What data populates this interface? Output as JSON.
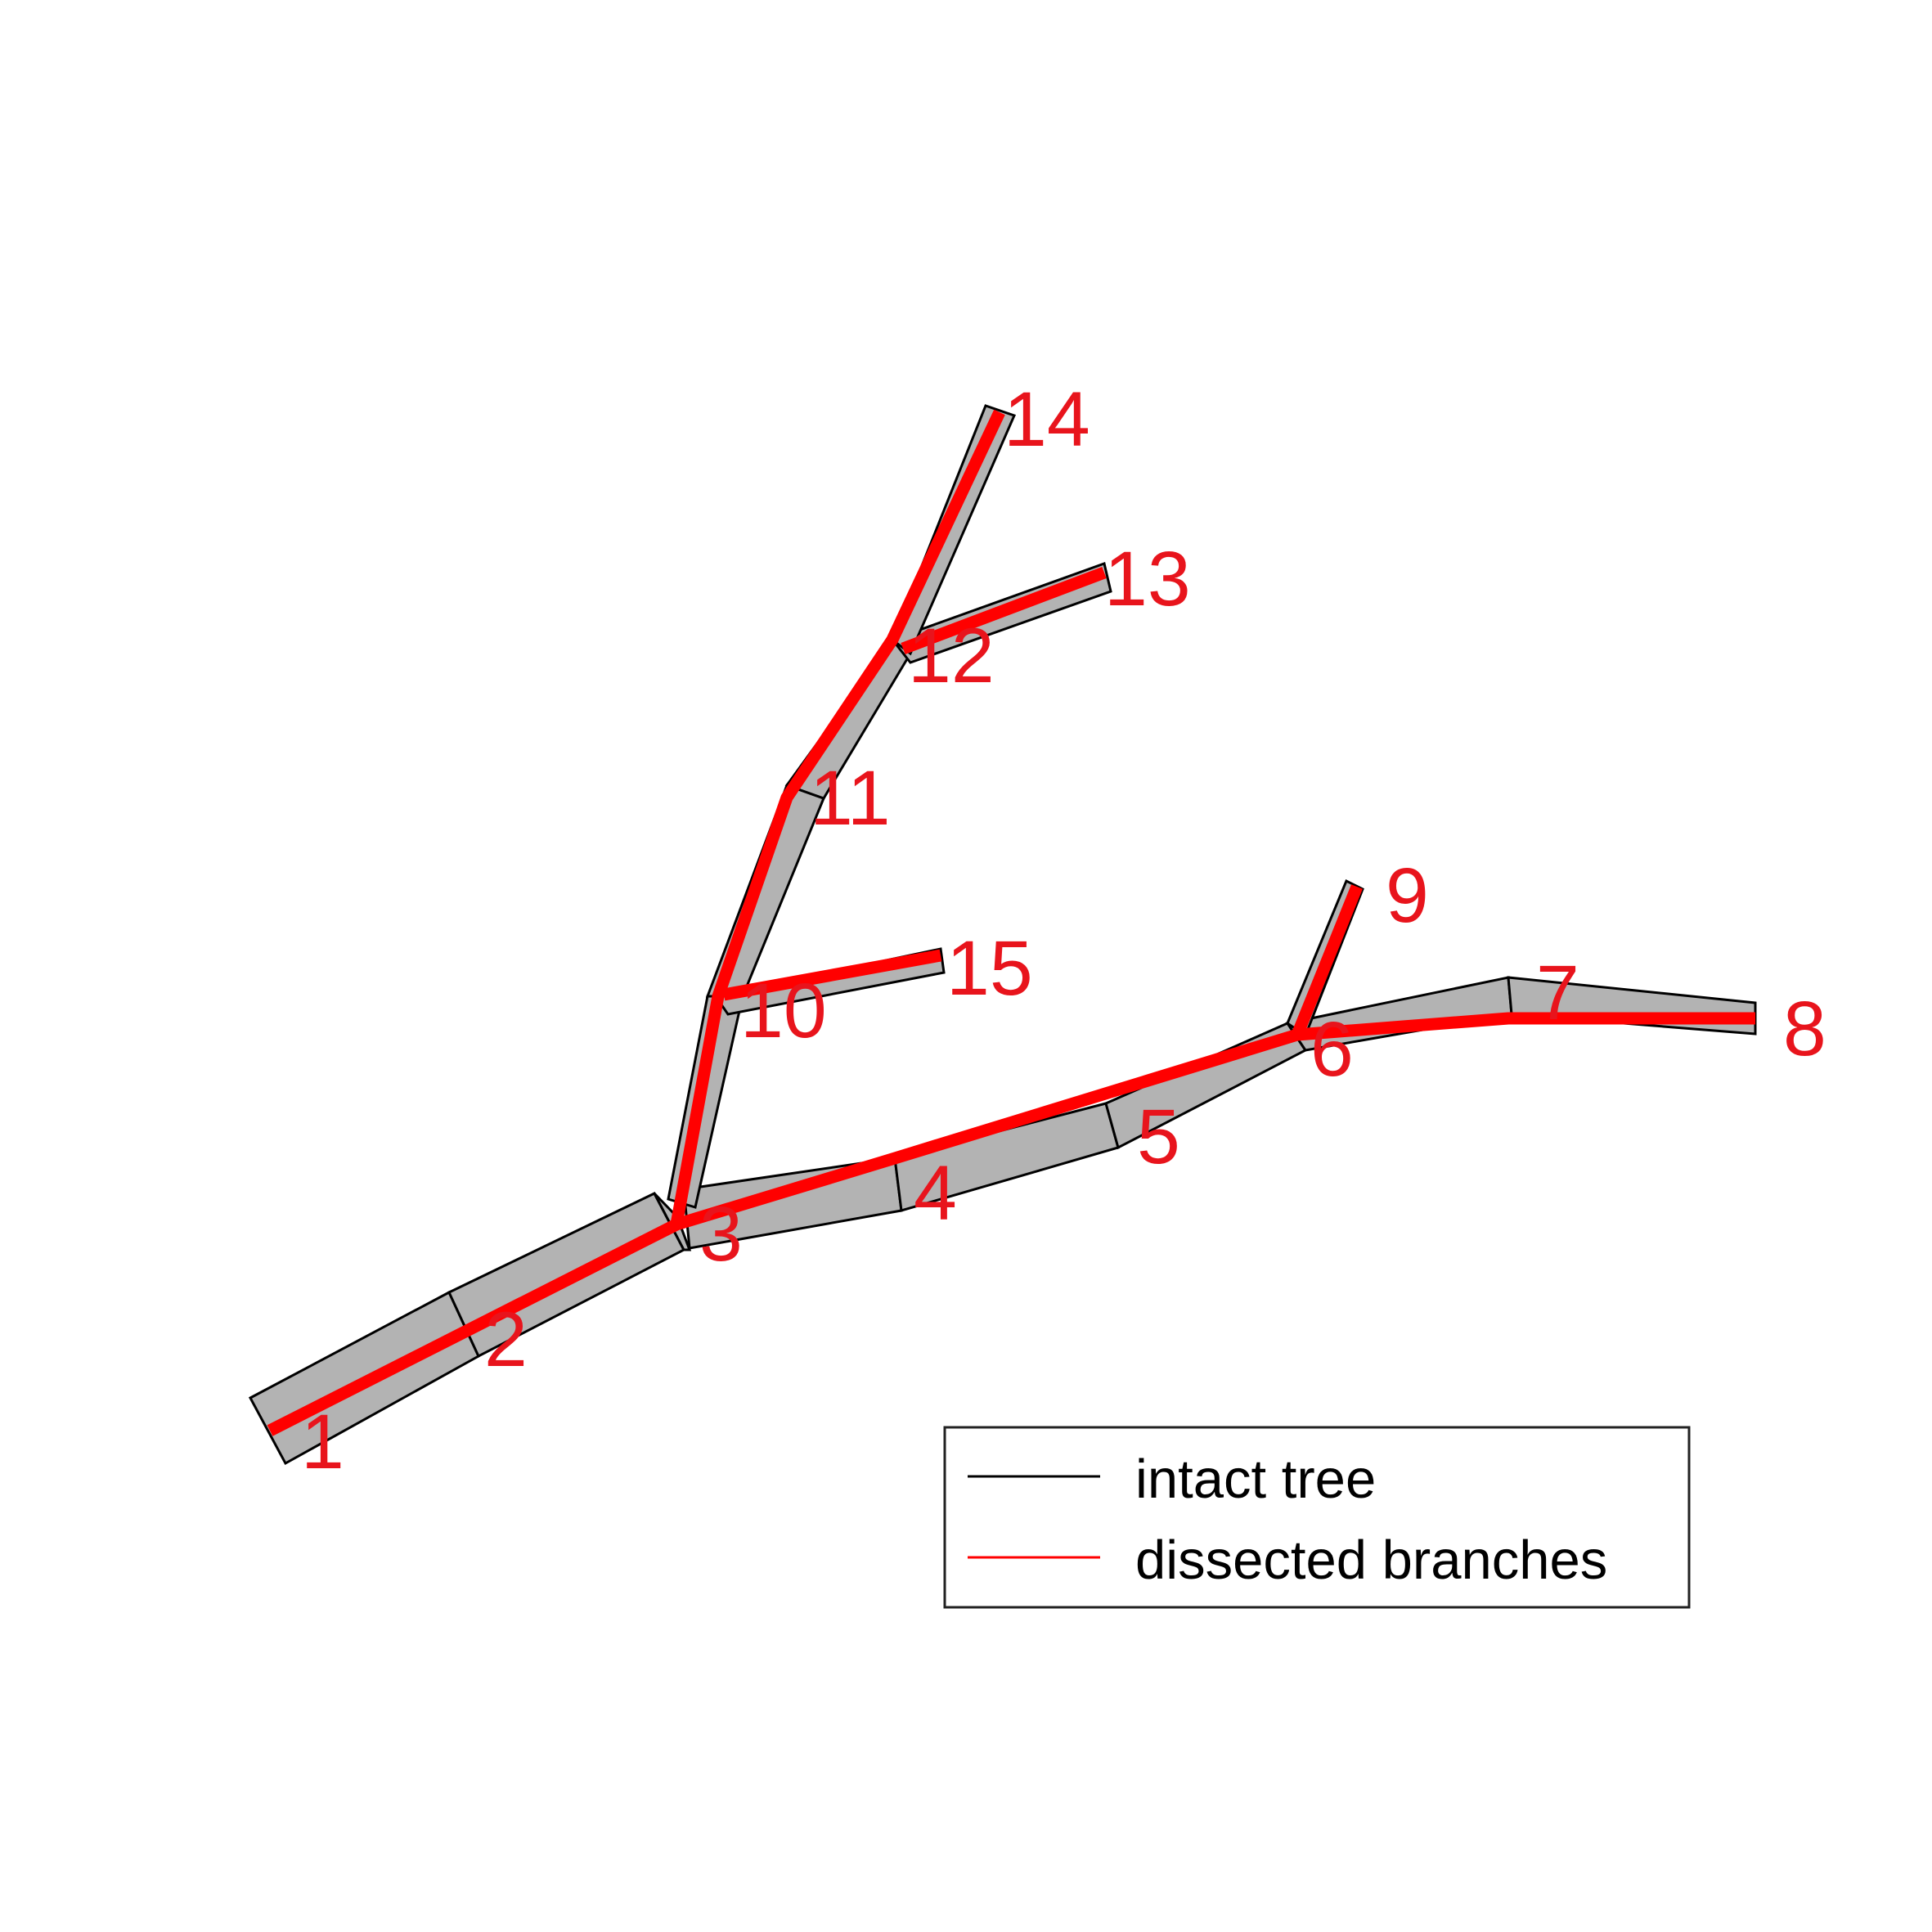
{
  "colors": {
    "segment_fill": "#b3b3b3",
    "segment_edge": "#000000",
    "dissected": "#ff0000",
    "label": "#e8141c"
  },
  "nodes": [
    {
      "id": "1"
    },
    {
      "id": "2"
    },
    {
      "id": "3"
    },
    {
      "id": "4"
    },
    {
      "id": "5"
    },
    {
      "id": "6"
    },
    {
      "id": "7"
    },
    {
      "id": "8"
    },
    {
      "id": "9"
    },
    {
      "id": "10"
    },
    {
      "id": "11"
    },
    {
      "id": "12"
    },
    {
      "id": "13"
    },
    {
      "id": "14"
    },
    {
      "id": "15"
    }
  ],
  "legend": {
    "intact_label": "intact tree",
    "dissected_label": "dissected branches"
  }
}
